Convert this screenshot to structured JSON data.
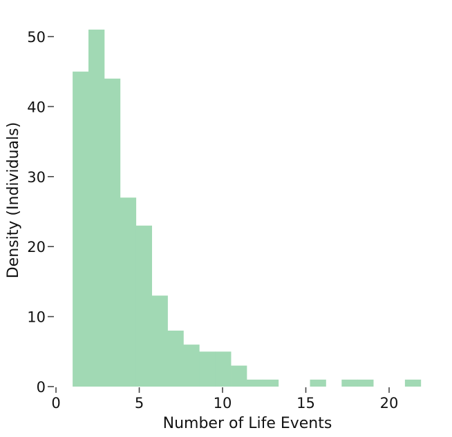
{
  "chart_data": {
    "type": "bar",
    "subtype": "histogram",
    "title": "",
    "xlabel": "Number of Life Events",
    "ylabel": "Density (Individuals)",
    "xlim": [
      0,
      22.2
    ],
    "ylim": [
      0,
      52
    ],
    "x_ticks": [
      0,
      5,
      10,
      15,
      20
    ],
    "y_ticks": [
      0,
      10,
      20,
      30,
      40,
      50
    ],
    "grid": false,
    "legend": "none",
    "color": "#a1d9b4",
    "bin_edges": [
      1.0,
      1.95,
      2.9,
      3.85,
      4.8,
      5.75,
      6.7,
      7.65,
      8.6,
      9.55,
      10.5,
      11.45,
      12.4,
      13.35,
      14.3,
      15.25,
      16.2,
      17.15,
      18.1,
      19.05,
      20.0,
      20.95,
      21.9
    ],
    "values": [
      45,
      51,
      44,
      27,
      23,
      13,
      8,
      6,
      5,
      5,
      3,
      1,
      1,
      0,
      0,
      1,
      0,
      1,
      1,
      0,
      0,
      1
    ]
  }
}
